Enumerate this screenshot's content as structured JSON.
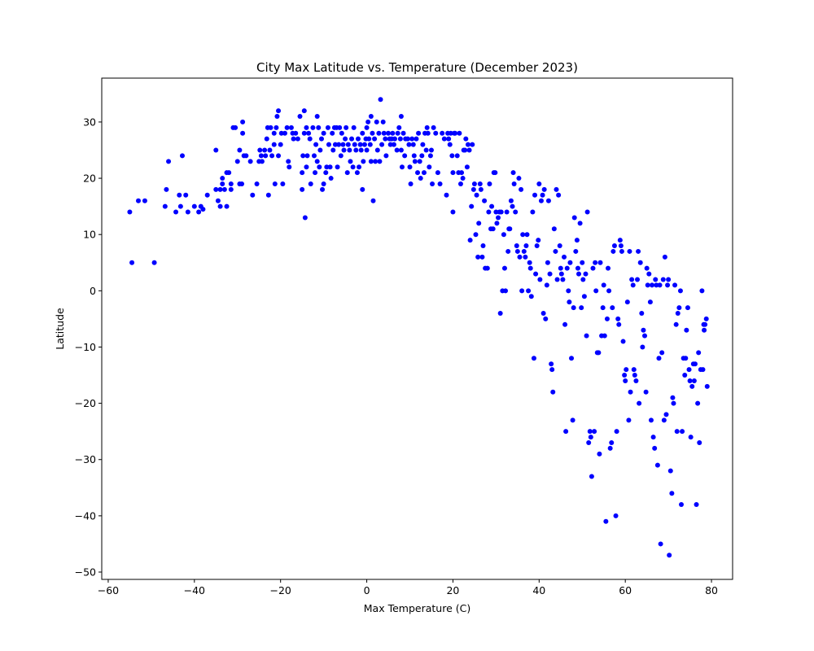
{
  "chart_data": {
    "type": "scatter",
    "title": "City Max Latitude vs. Temperature (December 2023)",
    "xlabel": "Max Temperature (C)",
    "ylabel": "Latitude",
    "xlim": [
      -61.5,
      84.9
    ],
    "ylim": [
      -51.3,
      37.8
    ],
    "xticks": [
      -60,
      -40,
      -20,
      0,
      20,
      40,
      60,
      80
    ],
    "yticks": [
      -50,
      -40,
      -30,
      -20,
      -10,
      0,
      10,
      20,
      30
    ],
    "xtick_labels": [
      "−60",
      "−40",
      "−20",
      "0",
      "20",
      "40",
      "60",
      "80"
    ],
    "ytick_labels": [
      "−50",
      "−40",
      "−30",
      "−20",
      "−10",
      "0",
      "10",
      "20",
      "30"
    ],
    "grid": false,
    "marker_color": "#0000ff",
    "points": [
      [
        -55,
        14
      ],
      [
        -54.5,
        5
      ],
      [
        -53,
        16
      ],
      [
        -51.5,
        16
      ],
      [
        -49.3,
        5
      ],
      [
        -46.8,
        15
      ],
      [
        -46.5,
        18
      ],
      [
        -46,
        23
      ],
      [
        -44.3,
        14
      ],
      [
        -43.5,
        17
      ],
      [
        -43.2,
        15
      ],
      [
        -42.8,
        24
      ],
      [
        -42,
        17
      ],
      [
        -41.5,
        14
      ],
      [
        -40,
        15
      ],
      [
        -39,
        14
      ],
      [
        -38.5,
        15
      ],
      [
        -38,
        14.5
      ],
      [
        -37,
        17
      ],
      [
        -35,
        18
      ],
      [
        -35,
        25
      ],
      [
        -34.5,
        16
      ],
      [
        -34,
        15
      ],
      [
        -34,
        18
      ],
      [
        -33.5,
        19
      ],
      [
        -33.5,
        20
      ],
      [
        -33,
        18
      ],
      [
        -32.5,
        21
      ],
      [
        -32.5,
        15
      ],
      [
        -32,
        21
      ],
      [
        -31.5,
        19
      ],
      [
        -31.5,
        18
      ],
      [
        -31,
        29
      ],
      [
        -30.5,
        29
      ],
      [
        -30,
        23
      ],
      [
        -29.5,
        19
      ],
      [
        -29.5,
        25
      ],
      [
        -29,
        19
      ],
      [
        -28.8,
        28
      ],
      [
        -28.8,
        30
      ],
      [
        -28.5,
        24
      ],
      [
        -28,
        24
      ],
      [
        -27,
        23
      ],
      [
        -26.5,
        17
      ],
      [
        -25.5,
        19
      ],
      [
        -25,
        23
      ],
      [
        -24.8,
        25
      ],
      [
        -24.5,
        24
      ],
      [
        -24.3,
        23
      ],
      [
        -23.7,
        25
      ],
      [
        -23.5,
        24
      ],
      [
        -23.2,
        27
      ],
      [
        -23,
        29
      ],
      [
        -22.8,
        17
      ],
      [
        -22.5,
        25
      ],
      [
        -22.3,
        29
      ],
      [
        -22,
        24
      ],
      [
        -21.5,
        28
      ],
      [
        -21.5,
        26
      ],
      [
        -21.3,
        19
      ],
      [
        -21,
        29
      ],
      [
        -20.8,
        31
      ],
      [
        -20.5,
        24
      ],
      [
        -20.5,
        32
      ],
      [
        -20,
        26
      ],
      [
        -19.8,
        28
      ],
      [
        -19.5,
        19
      ],
      [
        -19,
        28
      ],
      [
        -18.5,
        29
      ],
      [
        -18.2,
        23
      ],
      [
        -18,
        22
      ],
      [
        -17.5,
        29
      ],
      [
        -17.2,
        28
      ],
      [
        -17,
        27
      ],
      [
        -16.5,
        28
      ],
      [
        -16,
        27
      ],
      [
        -15.5,
        31
      ],
      [
        -15,
        18
      ],
      [
        -15,
        21
      ],
      [
        -14.8,
        24
      ],
      [
        -14.5,
        32
      ],
      [
        -14.5,
        28
      ],
      [
        -14.3,
        13
      ],
      [
        -14,
        29
      ],
      [
        -14,
        22
      ],
      [
        -13.8,
        24
      ],
      [
        -13.5,
        28
      ],
      [
        -13.2,
        27
      ],
      [
        -13,
        19
      ],
      [
        -12.5,
        29
      ],
      [
        -12.2,
        24
      ],
      [
        -12,
        21
      ],
      [
        -11.8,
        26
      ],
      [
        -11.5,
        23
      ],
      [
        -11.5,
        31
      ],
      [
        -11.2,
        29
      ],
      [
        -11,
        22
      ],
      [
        -10.8,
        25
      ],
      [
        -10.5,
        27
      ],
      [
        -10.3,
        18
      ],
      [
        -10,
        19
      ],
      [
        -10,
        28
      ],
      [
        -9.5,
        21
      ],
      [
        -9.3,
        22
      ],
      [
        -9,
        29
      ],
      [
        -8.8,
        26
      ],
      [
        -8.5,
        22
      ],
      [
        -8.3,
        20
      ],
      [
        -8,
        28
      ],
      [
        -7.8,
        25
      ],
      [
        -7.5,
        29
      ],
      [
        -7.3,
        26
      ],
      [
        -7,
        29
      ],
      [
        -6.8,
        22
      ],
      [
        -6.5,
        26
      ],
      [
        -6.3,
        29
      ],
      [
        -6,
        24
      ],
      [
        -5.8,
        28
      ],
      [
        -5.5,
        26
      ],
      [
        -5.3,
        25
      ],
      [
        -5,
        27
      ],
      [
        -4.8,
        29
      ],
      [
        -4.5,
        21
      ],
      [
        -4.3,
        26
      ],
      [
        -4,
        25
      ],
      [
        -3.8,
        23
      ],
      [
        -3.5,
        27
      ],
      [
        -3.2,
        22
      ],
      [
        -3,
        29
      ],
      [
        -2.8,
        26
      ],
      [
        -2.5,
        25
      ],
      [
        -2.2,
        21
      ],
      [
        -2,
        27
      ],
      [
        -1.8,
        22
      ],
      [
        -1.5,
        26
      ],
      [
        -1.3,
        25
      ],
      [
        -1,
        18
      ],
      [
        -1,
        28
      ],
      [
        -0.8,
        23
      ],
      [
        -0.5,
        26
      ],
      [
        -0.2,
        27
      ],
      [
        0,
        25
      ],
      [
        0,
        29
      ],
      [
        0.3,
        30
      ],
      [
        0.5,
        27
      ],
      [
        0.8,
        26
      ],
      [
        1,
        23
      ],
      [
        1,
        31
      ],
      [
        1.3,
        28
      ],
      [
        1.5,
        16
      ],
      [
        1.8,
        27
      ],
      [
        2,
        23
      ],
      [
        2.3,
        30
      ],
      [
        2.5,
        25
      ],
      [
        2.8,
        28
      ],
      [
        3,
        23
      ],
      [
        3.2,
        34
      ],
      [
        3.5,
        26
      ],
      [
        3.8,
        30
      ],
      [
        4,
        28
      ],
      [
        4.3,
        27
      ],
      [
        4.5,
        24
      ],
      [
        5,
        28
      ],
      [
        5.3,
        27
      ],
      [
        5.5,
        26
      ],
      [
        5.8,
        27
      ],
      [
        6,
        28
      ],
      [
        6.3,
        26
      ],
      [
        6.5,
        27
      ],
      [
        7,
        25
      ],
      [
        7.2,
        28
      ],
      [
        7.5,
        29
      ],
      [
        7.8,
        27
      ],
      [
        8,
        25
      ],
      [
        8,
        31
      ],
      [
        8.2,
        22
      ],
      [
        8.5,
        28
      ],
      [
        8.8,
        24
      ],
      [
        9,
        27
      ],
      [
        9.5,
        27
      ],
      [
        9.8,
        26
      ],
      [
        10,
        22
      ],
      [
        10.2,
        19
      ],
      [
        10.5,
        27
      ],
      [
        10.8,
        26
      ],
      [
        11,
        24
      ],
      [
        11.2,
        23
      ],
      [
        11.5,
        27
      ],
      [
        11.8,
        21
      ],
      [
        12,
        28
      ],
      [
        12.3,
        23
      ],
      [
        12.5,
        20
      ],
      [
        12.8,
        24
      ],
      [
        13,
        26
      ],
      [
        13.3,
        21
      ],
      [
        13.5,
        28
      ],
      [
        13.8,
        25
      ],
      [
        14,
        29
      ],
      [
        14.2,
        28
      ],
      [
        14.5,
        22
      ],
      [
        14.8,
        24
      ],
      [
        15,
        25
      ],
      [
        15.2,
        19
      ],
      [
        15.5,
        29
      ],
      [
        16,
        28
      ],
      [
        16.5,
        21
      ],
      [
        17,
        19
      ],
      [
        17.5,
        28
      ],
      [
        18,
        27
      ],
      [
        18.5,
        17
      ],
      [
        18.8,
        28
      ],
      [
        19,
        27
      ],
      [
        19.3,
        26
      ],
      [
        19.5,
        28
      ],
      [
        19.8,
        24
      ],
      [
        20,
        14
      ],
      [
        20,
        21
      ],
      [
        20.3,
        28
      ],
      [
        20.5,
        28
      ],
      [
        21,
        24
      ],
      [
        21.3,
        21
      ],
      [
        21.5,
        28
      ],
      [
        21.8,
        19
      ],
      [
        22,
        21
      ],
      [
        22.3,
        20
      ],
      [
        22.5,
        25
      ],
      [
        22.8,
        25
      ],
      [
        23,
        27
      ],
      [
        23.3,
        22
      ],
      [
        23.5,
        26
      ],
      [
        23.8,
        25
      ],
      [
        24,
        9
      ],
      [
        24.3,
        15
      ],
      [
        24.5,
        26
      ],
      [
        24.8,
        18
      ],
      [
        25,
        19
      ],
      [
        25.3,
        10
      ],
      [
        25.5,
        17
      ],
      [
        25.8,
        6
      ],
      [
        26,
        12
      ],
      [
        26.3,
        19
      ],
      [
        26.5,
        18
      ],
      [
        26.8,
        6
      ],
      [
        27,
        8
      ],
      [
        27.3,
        16
      ],
      [
        27.5,
        4
      ],
      [
        28,
        4
      ],
      [
        28.3,
        14
      ],
      [
        28.5,
        19
      ],
      [
        28.8,
        11
      ],
      [
        29,
        15
      ],
      [
        29.3,
        11
      ],
      [
        29.5,
        21
      ],
      [
        29.8,
        21
      ],
      [
        30,
        14
      ],
      [
        30.2,
        12
      ],
      [
        30.5,
        13
      ],
      [
        30.8,
        14
      ],
      [
        31,
        -4
      ],
      [
        31.2,
        14
      ],
      [
        31.5,
        0
      ],
      [
        31.8,
        10
      ],
      [
        32,
        4
      ],
      [
        32.2,
        0
      ],
      [
        32.5,
        14
      ],
      [
        32.8,
        7
      ],
      [
        33,
        11
      ],
      [
        33.2,
        11
      ],
      [
        33.5,
        16
      ],
      [
        33.8,
        15
      ],
      [
        34,
        21
      ],
      [
        34.2,
        19
      ],
      [
        34.5,
        14
      ],
      [
        34.8,
        8
      ],
      [
        35,
        7
      ],
      [
        35.3,
        20
      ],
      [
        35.5,
        6
      ],
      [
        35.8,
        18
      ],
      [
        36,
        0
      ],
      [
        36.2,
        10
      ],
      [
        36.5,
        7
      ],
      [
        36.8,
        6
      ],
      [
        37,
        8
      ],
      [
        37.2,
        10
      ],
      [
        37.5,
        0
      ],
      [
        37.8,
        5
      ],
      [
        38,
        4
      ],
      [
        38.2,
        -1
      ],
      [
        38.5,
        14
      ],
      [
        38.8,
        -12
      ],
      [
        39,
        17
      ],
      [
        39.2,
        3
      ],
      [
        39.5,
        8
      ],
      [
        39.8,
        9
      ],
      [
        40,
        19
      ],
      [
        40.2,
        2
      ],
      [
        40.5,
        16
      ],
      [
        40.8,
        17
      ],
      [
        41,
        -4
      ],
      [
        41.2,
        18
      ],
      [
        41.5,
        -5
      ],
      [
        41.8,
        1
      ],
      [
        42,
        5
      ],
      [
        42.2,
        16
      ],
      [
        42.5,
        3
      ],
      [
        42.8,
        -13
      ],
      [
        43,
        -14
      ],
      [
        43.2,
        -18
      ],
      [
        43.5,
        11
      ],
      [
        43.8,
        7
      ],
      [
        44,
        18
      ],
      [
        44.2,
        2
      ],
      [
        44.5,
        17
      ],
      [
        44.8,
        8
      ],
      [
        45,
        4
      ],
      [
        45.2,
        3
      ],
      [
        45.5,
        2
      ],
      [
        45.8,
        6
      ],
      [
        46,
        -6
      ],
      [
        46.2,
        -25
      ],
      [
        46.5,
        4
      ],
      [
        46.8,
        0
      ],
      [
        47,
        -2
      ],
      [
        47.2,
        5
      ],
      [
        47.5,
        -12
      ],
      [
        47.8,
        -23
      ],
      [
        48,
        -3
      ],
      [
        48.2,
        13
      ],
      [
        48.5,
        7
      ],
      [
        48.8,
        9
      ],
      [
        49,
        4
      ],
      [
        49.2,
        3
      ],
      [
        49.5,
        12
      ],
      [
        49.8,
        -3
      ],
      [
        50,
        5
      ],
      [
        50.2,
        2
      ],
      [
        50.5,
        -1
      ],
      [
        50.8,
        3
      ],
      [
        51,
        -8
      ],
      [
        51.2,
        14
      ],
      [
        51.5,
        -27
      ],
      [
        51.8,
        -25
      ],
      [
        52,
        -26
      ],
      [
        52.2,
        -33
      ],
      [
        52.5,
        4
      ],
      [
        52.8,
        -25
      ],
      [
        53,
        5
      ],
      [
        53.2,
        0
      ],
      [
        53.5,
        -11
      ],
      [
        53.8,
        -11
      ],
      [
        54,
        -29
      ],
      [
        54.2,
        5
      ],
      [
        54.5,
        -8
      ],
      [
        54.8,
        -3
      ],
      [
        55,
        1
      ],
      [
        55.2,
        -8
      ],
      [
        55.5,
        -41
      ],
      [
        55.8,
        -5
      ],
      [
        56,
        4
      ],
      [
        56.2,
        0
      ],
      [
        56.5,
        -28
      ],
      [
        56.8,
        -27
      ],
      [
        57,
        -3
      ],
      [
        57.2,
        7
      ],
      [
        57.5,
        8
      ],
      [
        57.8,
        -40
      ],
      [
        58,
        -25
      ],
      [
        58.3,
        -5
      ],
      [
        58.5,
        -6
      ],
      [
        58.8,
        9
      ],
      [
        59,
        8
      ],
      [
        59.2,
        7
      ],
      [
        59.5,
        -9
      ],
      [
        59.8,
        -15
      ],
      [
        60,
        -16
      ],
      [
        60.2,
        -14
      ],
      [
        60.5,
        -2
      ],
      [
        60.8,
        -23
      ],
      [
        61,
        7
      ],
      [
        61.2,
        -18
      ],
      [
        61.5,
        2
      ],
      [
        61.8,
        1
      ],
      [
        62,
        -14
      ],
      [
        62.2,
        -15
      ],
      [
        62.5,
        -16
      ],
      [
        62.8,
        2
      ],
      [
        63,
        7
      ],
      [
        63.2,
        -20
      ],
      [
        63.5,
        5
      ],
      [
        63.8,
        -4
      ],
      [
        64,
        -10
      ],
      [
        64.2,
        -7
      ],
      [
        64.5,
        -8
      ],
      [
        64.8,
        -18
      ],
      [
        65,
        4
      ],
      [
        65.2,
        1
      ],
      [
        65.5,
        3
      ],
      [
        65.8,
        -2
      ],
      [
        66,
        -23
      ],
      [
        66.2,
        1
      ],
      [
        66.5,
        -26
      ],
      [
        66.8,
        -28
      ],
      [
        67,
        2
      ],
      [
        67.2,
        1
      ],
      [
        67.5,
        -31
      ],
      [
        67.8,
        -12
      ],
      [
        68,
        1
      ],
      [
        68.2,
        -45
      ],
      [
        68.5,
        -11
      ],
      [
        68.8,
        2
      ],
      [
        69,
        -23
      ],
      [
        69.2,
        6
      ],
      [
        69.5,
        -22
      ],
      [
        69.8,
        1
      ],
      [
        70,
        2
      ],
      [
        70.2,
        -47
      ],
      [
        70.5,
        -32
      ],
      [
        70.8,
        -36
      ],
      [
        71,
        -19
      ],
      [
        71.2,
        -20
      ],
      [
        71.5,
        1
      ],
      [
        71.8,
        -6
      ],
      [
        72,
        -25
      ],
      [
        72.2,
        -4
      ],
      [
        72.5,
        -3
      ],
      [
        72.8,
        0
      ],
      [
        73,
        -38
      ],
      [
        73.2,
        -25
      ],
      [
        73.5,
        -12
      ],
      [
        73.8,
        -15
      ],
      [
        74,
        -12
      ],
      [
        74.2,
        -7
      ],
      [
        74.5,
        -3
      ],
      [
        74.8,
        -14
      ],
      [
        75,
        -16
      ],
      [
        75.2,
        -26
      ],
      [
        75.5,
        -17
      ],
      [
        75.8,
        -13
      ],
      [
        76,
        -16
      ],
      [
        76.2,
        -13
      ],
      [
        76.5,
        -38
      ],
      [
        76.8,
        -20
      ],
      [
        77,
        -11
      ],
      [
        77.2,
        -27
      ],
      [
        77.5,
        -14
      ],
      [
        77.8,
        0
      ],
      [
        78,
        -14
      ],
      [
        78.2,
        -6
      ],
      [
        78.5,
        -6
      ],
      [
        78.8,
        -5
      ],
      [
        79,
        -17
      ],
      [
        78.3,
        -7
      ]
    ]
  }
}
